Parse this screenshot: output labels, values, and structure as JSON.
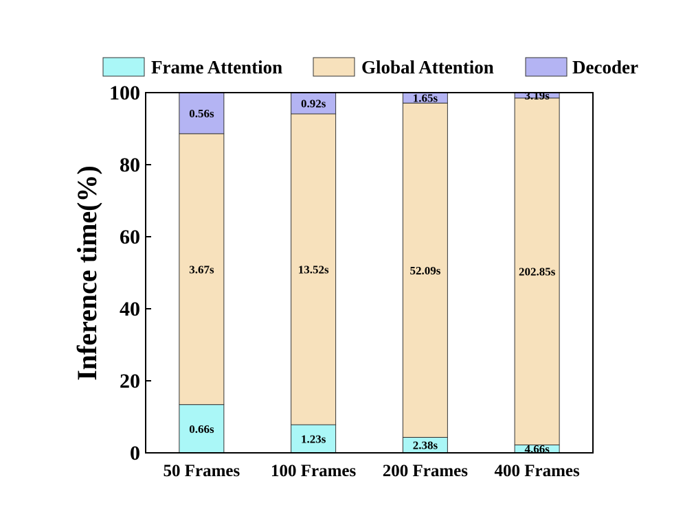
{
  "chart_data": {
    "type": "bar",
    "stacked": true,
    "normalized_percent": true,
    "categories": [
      "50 Frames",
      "100 Frames",
      "200 Frames",
      "400 Frames"
    ],
    "ylabel": "Inference time(%)",
    "xlabel": "",
    "ylim": [
      0,
      100
    ],
    "yticks": [
      0,
      20,
      40,
      60,
      80,
      100
    ],
    "grid": false,
    "legend_position": "top",
    "series": [
      {
        "name": "Frame Attention",
        "color": "#aaf7f7",
        "percent": [
          13.4,
          7.8,
          4.3,
          2.2
        ],
        "labels": [
          "0.66s",
          "1.23s",
          "2.38s",
          "4.66s"
        ]
      },
      {
        "name": "Global Attention",
        "color": "#f7e1bc",
        "percent": [
          75.2,
          86.3,
          92.8,
          96.3
        ],
        "labels": [
          "3.67s",
          "13.52s",
          "52.09s",
          "202.85s"
        ]
      },
      {
        "name": "Decoder",
        "color": "#b4b4f3",
        "percent": [
          11.4,
          5.9,
          2.9,
          1.5
        ],
        "labels": [
          "0.56s",
          "0.92s",
          "1.65s",
          "3.19s"
        ]
      }
    ]
  }
}
